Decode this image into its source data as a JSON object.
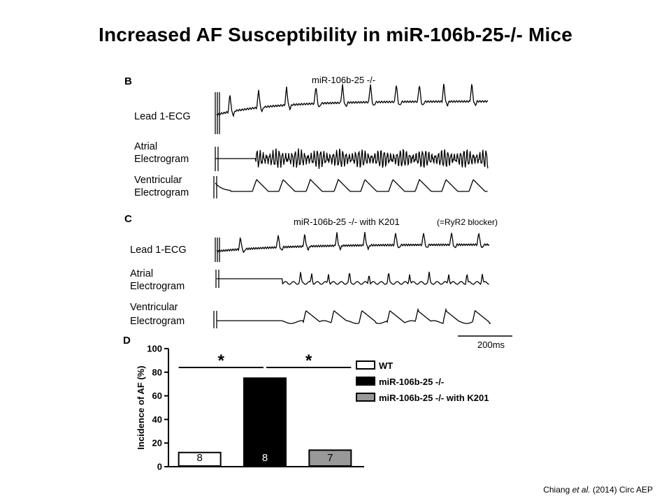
{
  "slide": {
    "title": "Increased AF Susceptibility in miR-106b-25-/- Mice"
  },
  "panel_b": {
    "letter": "B",
    "header": "miR-106b-25 -/-",
    "leads": [
      {
        "line1": "Lead 1-ECG",
        "line2": ""
      },
      {
        "line1": "Atrial",
        "line2": "Electrogram"
      },
      {
        "line1": "Ventricular",
        "line2": "Electrogram"
      }
    ]
  },
  "panel_c": {
    "letter": "C",
    "header": "miR-106b-25 -/-  with K201",
    "note": "(=RyR2 blocker)",
    "leads": [
      {
        "line1": "Lead 1-ECG",
        "line2": ""
      },
      {
        "line1": "Atrial",
        "line2": "Electrogram"
      },
      {
        "line1": "Ventricular",
        "line2": "Electrogram"
      }
    ],
    "scale_bar": "200ms"
  },
  "panel_d": {
    "letter": "D"
  },
  "chart_data": {
    "type": "bar",
    "categories": [
      "WT",
      "miR-106b-25 -/-",
      "miR-106b-25 -/- with K201"
    ],
    "values": [
      12,
      75,
      14
    ],
    "n_labels": [
      "8",
      "8",
      "7"
    ],
    "colors": [
      "#ffffff",
      "#000000",
      "#999999"
    ],
    "ylabel": "Incidence of AF (%)",
    "ylim": [
      0,
      100
    ],
    "yticks": [
      "0",
      "20",
      "40",
      "60",
      "80",
      "100"
    ],
    "significance": [
      "*",
      "*"
    ],
    "legend": [
      "WT",
      "miR-106b-25 -/-",
      "miR-106b-25 -/- with K201"
    ],
    "legend_position": "right",
    "grid": false
  },
  "citation": {
    "author": "Chiang",
    "etal": "et al.",
    "year": "(2014)",
    "journal": "Circ AEP"
  }
}
